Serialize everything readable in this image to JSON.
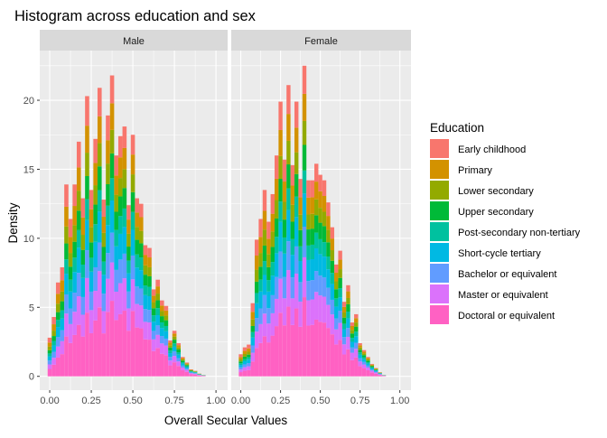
{
  "chart_data": {
    "type": "bar",
    "subtype": "stacked-histogram-faceted",
    "title": "Histogram across education and sex",
    "xlabel": "Overall Secular Values",
    "ylabel": "Density",
    "xlim": [
      0,
      1
    ],
    "ylim": [
      0,
      22.5
    ],
    "x_ticks": [
      "0.00",
      "0.25",
      "0.50",
      "0.75",
      "1.00"
    ],
    "y_ticks": [
      "0",
      "5",
      "10",
      "15",
      "20"
    ],
    "bin_width": 0.025,
    "grid": true,
    "legend_title": "Education",
    "legend_position": "right",
    "levels": [
      {
        "name": "Early childhood",
        "color": "#F8766D"
      },
      {
        "name": "Primary",
        "color": "#D39200"
      },
      {
        "name": "Lower secondary",
        "color": "#93AA00"
      },
      {
        "name": "Upper secondary",
        "color": "#00BA38"
      },
      {
        "name": "Post-secondary non-tertiary",
        "color": "#00C19F"
      },
      {
        "name": "Short-cycle tertiary",
        "color": "#00B9E3"
      },
      {
        "name": "Bachelor or equivalent",
        "color": "#619CFF"
      },
      {
        "name": "Master or equivalent",
        "color": "#DB72FB"
      },
      {
        "name": "Doctoral or equivalent",
        "color": "#FF61C3"
      }
    ],
    "facets": [
      {
        "label": "Male",
        "bin_centers": [
          0.0,
          0.025,
          0.05,
          0.075,
          0.1,
          0.125,
          0.15,
          0.175,
          0.2,
          0.225,
          0.25,
          0.275,
          0.3,
          0.325,
          0.35,
          0.375,
          0.4,
          0.425,
          0.45,
          0.475,
          0.5,
          0.525,
          0.55,
          0.575,
          0.6,
          0.625,
          0.65,
          0.675,
          0.7,
          0.725,
          0.75,
          0.775,
          0.8,
          0.825,
          0.85,
          0.875,
          0.9,
          0.925,
          0.95,
          0.975
        ],
        "totals": [
          2.8,
          4.3,
          6.8,
          7.9,
          13.9,
          11.4,
          13.9,
          17.0,
          12.9,
          20.3,
          13.5,
          17.2,
          20.9,
          12.8,
          18.9,
          21.8,
          16.0,
          17.4,
          18.1,
          12.4,
          17.5,
          12.9,
          12.5,
          9.5,
          9.3,
          6.3,
          7.0,
          5.5,
          5.1,
          2.6,
          3.3,
          2.4,
          1.4,
          1.0,
          0.5,
          0.4,
          0.2,
          0.1,
          0.0,
          0.0
        ]
      },
      {
        "label": "Female",
        "bin_centers": [
          0.0,
          0.025,
          0.05,
          0.075,
          0.1,
          0.125,
          0.15,
          0.175,
          0.2,
          0.225,
          0.25,
          0.275,
          0.3,
          0.325,
          0.35,
          0.375,
          0.4,
          0.425,
          0.45,
          0.475,
          0.5,
          0.525,
          0.55,
          0.575,
          0.6,
          0.625,
          0.65,
          0.675,
          0.7,
          0.725,
          0.75,
          0.775,
          0.8,
          0.825,
          0.85,
          0.875,
          0.9,
          0.925,
          0.95,
          0.975
        ],
        "totals": [
          1.6,
          2.1,
          2.3,
          5.3,
          9.9,
          11.4,
          13.5,
          11.2,
          13.2,
          16.0,
          19.9,
          15.7,
          21.1,
          15.3,
          19.9,
          14.3,
          22.5,
          14.2,
          14.2,
          15.4,
          14.6,
          14.2,
          12.6,
          10.8,
          8.1,
          9.1,
          5.4,
          6.6,
          3.9,
          4.5,
          2.4,
          1.9,
          1.4,
          0.9,
          0.6,
          0.3,
          0.1,
          0.0,
          0.0,
          0.0
        ]
      }
    ]
  }
}
